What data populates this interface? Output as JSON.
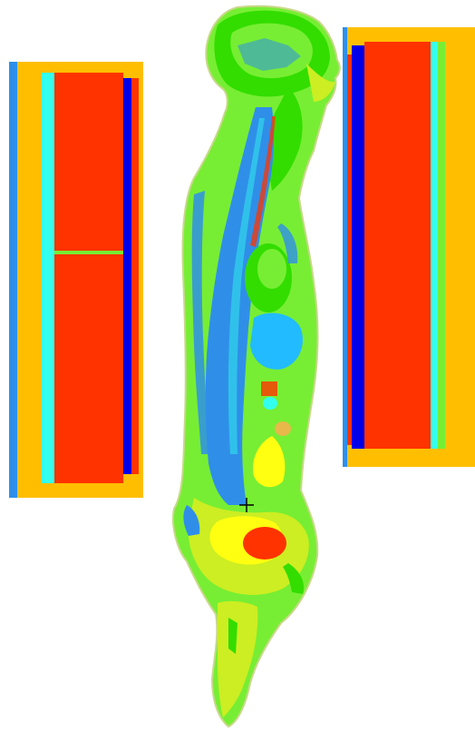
{
  "palette": {
    "background": "#ffffff",
    "outline": "#c9d88a",
    "orange_frame": "#ffbf00",
    "red_core": "#ff3300",
    "blue_edge": "#0f5ff0",
    "dark_blue": "#0000e6",
    "cyan": "#33ffee",
    "green_bright": "#33dd00",
    "green_light": "#77ee33",
    "yellow_green": "#ccee22",
    "yellow": "#ffff11",
    "spine_blue": "#2f8fe8",
    "organ_cyan": "#22bbff",
    "tan": "#e8b84a",
    "marker": "#000000"
  },
  "elements": {
    "left_panel": "shield-panel-left",
    "right_panel": "shield-panel-right",
    "body_section": "sagittal-body-section",
    "marker": "crosshair-marker"
  }
}
